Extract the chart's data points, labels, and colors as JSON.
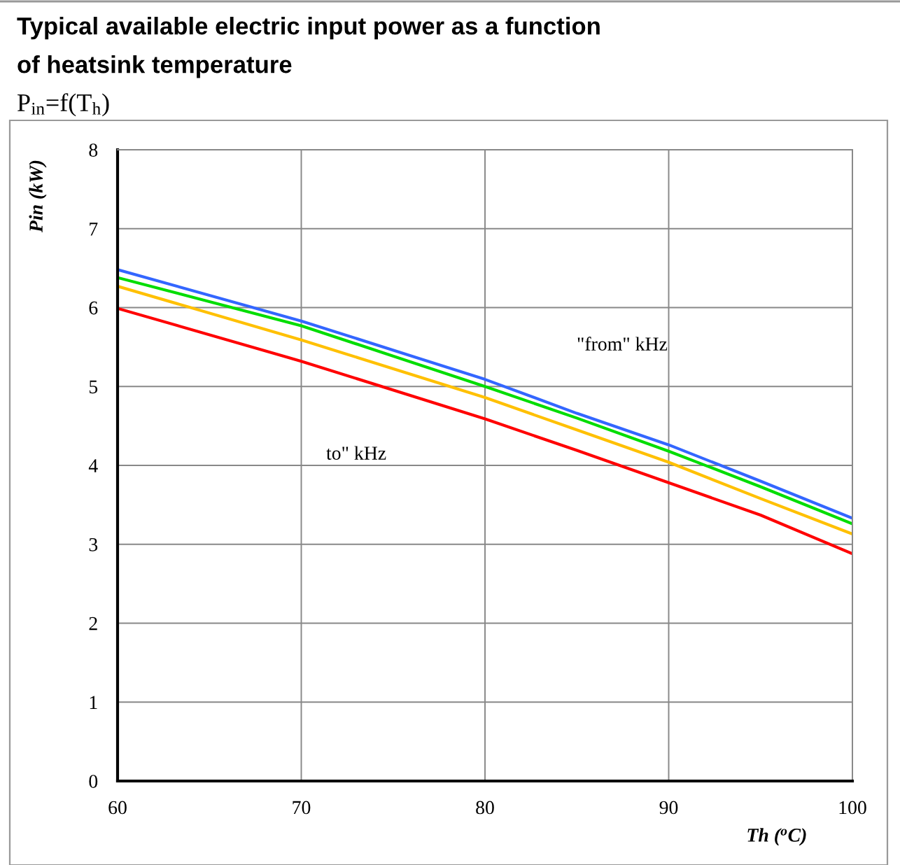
{
  "chart_data": {
    "type": "line",
    "title": "Typical available electric input power as a function\nof heatsink temperature",
    "subtitle": "P$_{in}$=f(T$_{h}$)",
    "xlabel": "Th ($^{o}$C)",
    "ylabel": "Pin (kW)",
    "x": [
      60,
      70,
      80,
      85,
      90,
      95,
      100
    ],
    "series": [
      {
        "color": "#3366ff",
        "values": [
          6.48,
          5.83,
          5.09,
          4.66,
          4.26,
          3.8,
          3.33
        ]
      },
      {
        "color": "#00dd00",
        "values": [
          6.38,
          5.77,
          5.0,
          4.6,
          4.18,
          3.73,
          3.26
        ]
      },
      {
        "color": "#ffc000",
        "values": [
          6.27,
          5.59,
          4.86,
          4.45,
          4.04,
          3.58,
          3.13
        ]
      },
      {
        "color": "#ff0000",
        "values": [
          5.99,
          5.32,
          4.59,
          4.19,
          3.78,
          3.37,
          2.88
        ]
      }
    ],
    "xlim": [
      60,
      100
    ],
    "xticks": [
      60,
      70,
      80,
      90,
      100
    ],
    "ylim": [
      0,
      8
    ],
    "yticks": [
      0,
      1,
      2,
      3,
      4,
      5,
      6,
      7,
      8
    ],
    "grid": true,
    "marker": "none",
    "line_style": "solid",
    "annotations": [
      "\"from\" kHz",
      "to\" kHz"
    ]
  }
}
